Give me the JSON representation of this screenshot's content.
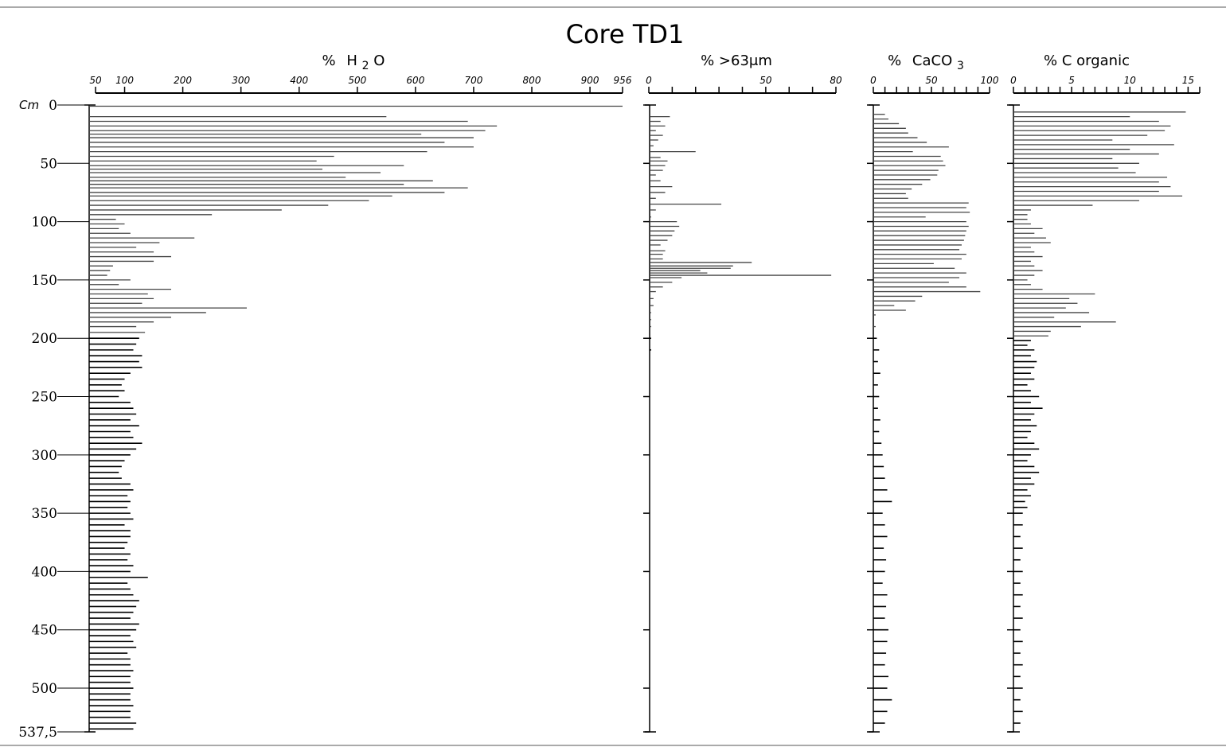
{
  "chart_data": {
    "type": "bar",
    "title": "Core TD1",
    "depth_axis": {
      "unit": "Cm",
      "ticks": [
        0,
        50,
        100,
        150,
        200,
        250,
        300,
        350,
        400,
        450,
        500,
        537.5
      ],
      "tick_labels": [
        "0",
        "50",
        "100",
        "150",
        "200",
        "250",
        "300",
        "350",
        "400",
        "450",
        "500",
        "537,5"
      ],
      "range": [
        0,
        537.5
      ]
    },
    "panels": [
      {
        "key": "h2o",
        "label": "% H2O",
        "label_parts": [
          "%",
          "H",
          "2",
          "O"
        ],
        "xlim": [
          50,
          956
        ],
        "ticks": [
          50,
          100,
          200,
          300,
          400,
          500,
          600,
          700,
          800,
          900,
          956
        ],
        "tick_labels": [
          "50",
          "100",
          "200",
          "300",
          "400",
          "500",
          "600",
          "700",
          "800",
          "900",
          "956"
        ],
        "depths": [
          1,
          10,
          14,
          18,
          22,
          25,
          28,
          32,
          36,
          40,
          44,
          48,
          52,
          55,
          58,
          62,
          65,
          68,
          71,
          75,
          78,
          82,
          86,
          90,
          94,
          98,
          102,
          106,
          110,
          114,
          118,
          122,
          126,
          130,
          134,
          138,
          142,
          146,
          150,
          154,
          158,
          162,
          166,
          170,
          174,
          178,
          182,
          186,
          190,
          195,
          200,
          205,
          210,
          215,
          220,
          225,
          230,
          235,
          240,
          245,
          250,
          255,
          260,
          265,
          270,
          275,
          280,
          285,
          290,
          295,
          300,
          305,
          310,
          315,
          320,
          325,
          330,
          335,
          340,
          345,
          350,
          355,
          360,
          365,
          370,
          375,
          380,
          385,
          390,
          395,
          400,
          405,
          410,
          415,
          420,
          425,
          430,
          435,
          440,
          445,
          450,
          455,
          460,
          465,
          470,
          475,
          480,
          485,
          490,
          495,
          500,
          505,
          510,
          515,
          520,
          525,
          530,
          535
        ],
        "values": [
          956,
          550,
          690,
          740,
          720,
          610,
          700,
          650,
          700,
          620,
          460,
          430,
          580,
          440,
          540,
          480,
          630,
          580,
          690,
          650,
          560,
          520,
          450,
          370,
          250,
          85,
          100,
          90,
          110,
          220,
          160,
          120,
          150,
          180,
          150,
          80,
          75,
          70,
          110,
          90,
          180,
          140,
          150,
          130,
          310,
          240,
          180,
          150,
          120,
          135,
          125,
          120,
          115,
          130,
          125,
          130,
          110,
          100,
          95,
          100,
          90,
          110,
          115,
          120,
          110,
          125,
          110,
          115,
          130,
          120,
          110,
          100,
          95,
          90,
          95,
          110,
          115,
          105,
          110,
          105,
          110,
          115,
          100,
          110,
          110,
          105,
          100,
          110,
          105,
          115,
          110,
          140,
          105,
          110,
          115,
          125,
          120,
          115,
          110,
          125,
          120,
          110,
          115,
          120,
          105,
          110,
          110,
          115,
          110,
          110,
          115,
          110,
          110,
          115,
          110,
          110,
          120,
          115
        ]
      },
      {
        "key": "coarse",
        "label": "% >63μm",
        "xlim": [
          0,
          80
        ],
        "ticks": [
          0,
          10,
          20,
          30,
          40,
          50,
          60,
          70,
          80
        ],
        "tick_labels": [
          "0",
          "",
          "",
          "",
          "",
          "50",
          "",
          "",
          "80"
        ],
        "depths": [
          10,
          14,
          18,
          22,
          26,
          30,
          35,
          40,
          45,
          48,
          52,
          56,
          60,
          65,
          70,
          75,
          80,
          85,
          90,
          96,
          100,
          104,
          108,
          112,
          116,
          120,
          125,
          128,
          132,
          135,
          138,
          140,
          142,
          144,
          146,
          148,
          152,
          156,
          160,
          166,
          172,
          178,
          184,
          190,
          200,
          210
        ],
        "values": [
          9,
          5,
          7,
          3,
          6,
          4,
          2,
          20,
          5,
          8,
          7,
          6,
          3,
          5,
          10,
          7,
          3,
          31,
          3,
          1,
          12,
          13,
          11,
          10,
          8,
          5,
          7,
          6,
          6,
          44,
          36,
          35,
          22,
          25,
          78,
          14,
          10,
          6,
          3,
          2,
          2,
          1,
          1,
          1,
          1,
          1
        ]
      },
      {
        "key": "caco3",
        "label": "% CaCO3",
        "label_parts": [
          "%",
          "CaCO",
          "3"
        ],
        "xlim": [
          0,
          100
        ],
        "ticks": [
          0,
          10,
          20,
          30,
          40,
          50,
          60,
          70,
          80,
          90,
          100
        ],
        "tick_labels": [
          "0",
          "",
          "",
          "",
          "",
          "50",
          "",
          "",
          "",
          "",
          "100"
        ],
        "depths": [
          8,
          12,
          16,
          20,
          24,
          28,
          32,
          36,
          40,
          44,
          48,
          52,
          56,
          60,
          64,
          68,
          72,
          76,
          80,
          84,
          88,
          92,
          96,
          100,
          104,
          108,
          112,
          116,
          120,
          124,
          128,
          132,
          136,
          140,
          144,
          148,
          152,
          156,
          160,
          164,
          168,
          172,
          176,
          180,
          190,
          200,
          210,
          220,
          230,
          240,
          250,
          260,
          270,
          280,
          290,
          300,
          310,
          320,
          330,
          340,
          350,
          360,
          370,
          380,
          390,
          400,
          410,
          420,
          430,
          440,
          450,
          460,
          470,
          480,
          490,
          500,
          510,
          520,
          530
        ],
        "values": [
          10,
          13,
          22,
          28,
          30,
          38,
          46,
          65,
          34,
          58,
          60,
          62,
          56,
          55,
          49,
          42,
          33,
          28,
          30,
          82,
          80,
          83,
          45,
          80,
          82,
          80,
          79,
          78,
          76,
          74,
          80,
          76,
          52,
          70,
          80,
          74,
          65,
          80,
          92,
          42,
          36,
          18,
          28,
          2,
          2,
          3,
          5,
          4,
          6,
          4,
          5,
          4,
          6,
          5,
          7,
          8,
          9,
          10,
          12,
          16,
          8,
          10,
          12,
          9,
          11,
          10,
          8,
          12,
          11,
          10,
          13,
          12,
          11,
          10,
          13,
          12,
          16,
          12,
          10
        ]
      },
      {
        "key": "corg",
        "label": "% C organic",
        "xlim": [
          0,
          16
        ],
        "ticks": [
          0,
          1,
          2,
          3,
          4,
          5,
          6,
          7,
          8,
          9,
          10,
          11,
          12,
          13,
          14,
          15,
          16
        ],
        "tick_labels": [
          "0",
          "",
          "",
          "",
          "",
          "5",
          "",
          "",
          "",
          "",
          "10",
          "",
          "",
          "",
          "",
          "15",
          ""
        ],
        "depths": [
          6,
          10,
          14,
          18,
          22,
          26,
          30,
          34,
          38,
          42,
          46,
          50,
          54,
          58,
          62,
          66,
          70,
          74,
          78,
          82,
          86,
          90,
          94,
          98,
          102,
          106,
          110,
          114,
          118,
          122,
          126,
          130,
          134,
          138,
          142,
          146,
          150,
          154,
          158,
          162,
          166,
          170,
          174,
          178,
          182,
          186,
          190,
          194,
          198,
          202,
          206,
          210,
          215,
          220,
          225,
          230,
          235,
          240,
          245,
          250,
          255,
          260,
          265,
          270,
          275,
          280,
          285,
          290,
          295,
          300,
          305,
          310,
          315,
          320,
          325,
          330,
          335,
          340,
          345,
          350,
          360,
          370,
          380,
          390,
          400,
          410,
          420,
          430,
          440,
          450,
          460,
          470,
          480,
          490,
          500,
          510,
          520,
          530
        ],
        "values": [
          14.8,
          10,
          12.5,
          13.5,
          13,
          11.5,
          8.5,
          13.8,
          10,
          12.5,
          8.5,
          10.8,
          9,
          10.5,
          13.2,
          12.5,
          13.5,
          12.5,
          14.5,
          10.8,
          6.8,
          1.5,
          1.2,
          1.2,
          1.5,
          2.5,
          1.8,
          2.8,
          3.2,
          1.5,
          1.8,
          2.5,
          1.5,
          1.8,
          2.5,
          1.8,
          1.2,
          1.5,
          2.5,
          7,
          4.8,
          5.5,
          4.5,
          6.5,
          3.5,
          8.8,
          5.8,
          3.2,
          3,
          1.5,
          1.2,
          1.8,
          1.5,
          2,
          1.8,
          1.5,
          1.8,
          1.2,
          1.5,
          2.2,
          1.5,
          2.5,
          1.8,
          1.5,
          2,
          1.5,
          1.2,
          1.8,
          2.2,
          1.5,
          1.2,
          1.8,
          2.2,
          1.5,
          1.8,
          1.2,
          1.5,
          1,
          1.2,
          0.8,
          0.8,
          0.6,
          0.8,
          0.6,
          0.8,
          0.6,
          0.8,
          0.6,
          0.8,
          0.6,
          0.8,
          0.6,
          0.8,
          0.6,
          0.8,
          0.6,
          0.8,
          0.6
        ]
      }
    ],
    "grid": false,
    "legend": "none"
  }
}
